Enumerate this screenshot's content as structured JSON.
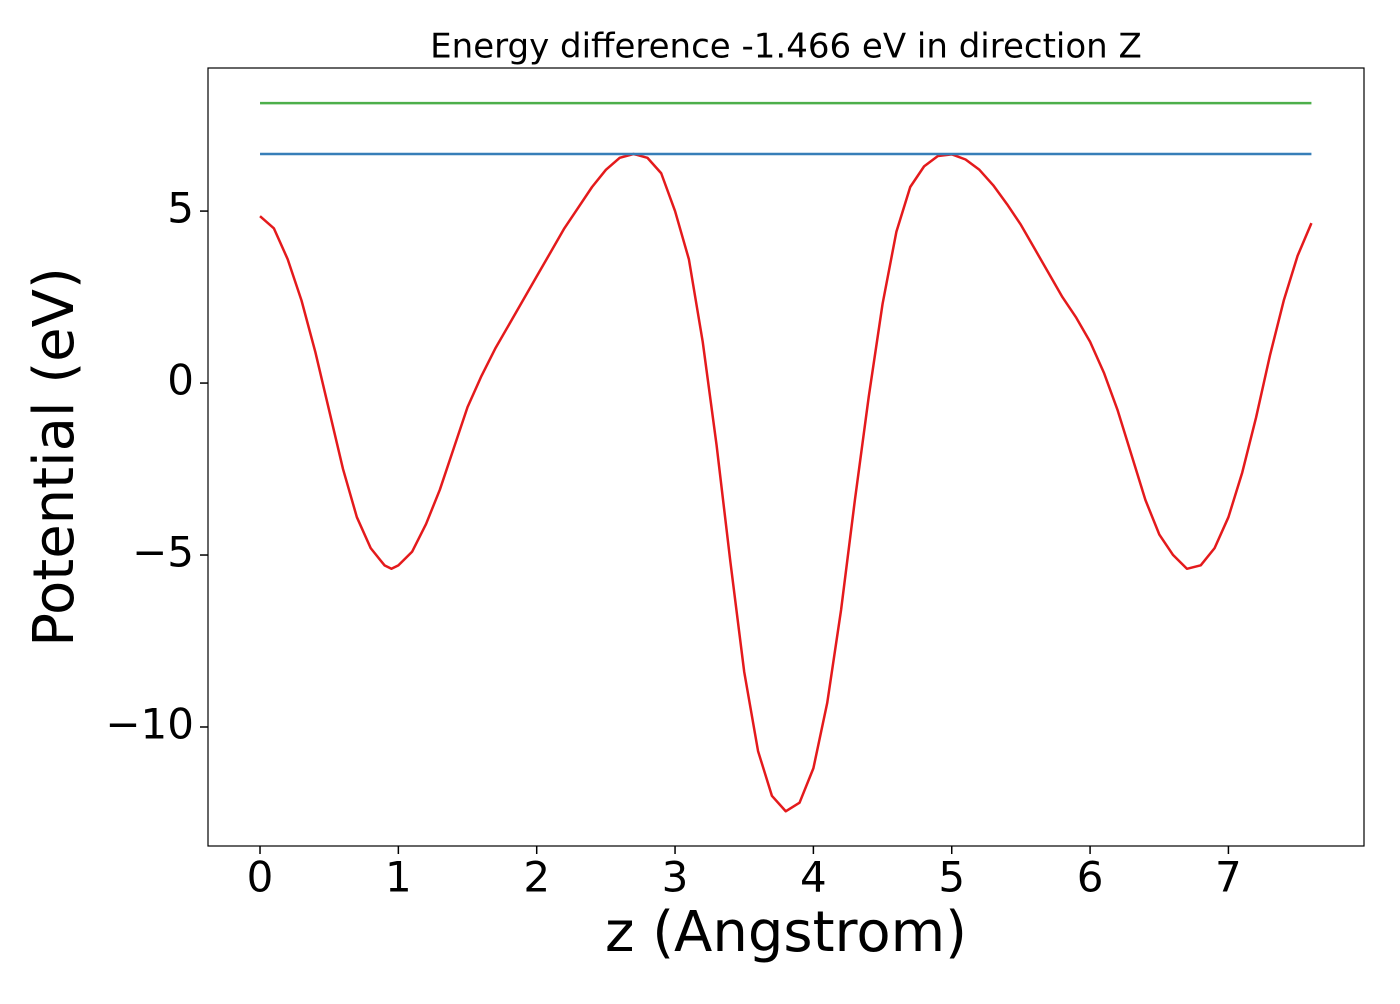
{
  "chart_data": {
    "type": "line",
    "title": "Energy difference -1.466 eV in direction Z",
    "x_label": "z (Angstrom)",
    "y_label": "Potential (eV)",
    "xlim": [
      -0.376,
      7.98
    ],
    "ylim": [
      -13.46,
      9.16
    ],
    "xticks": [
      0,
      1,
      2,
      3,
      4,
      5,
      6,
      7
    ],
    "yticks": [
      {
        "value": -10,
        "label": "−10"
      },
      {
        "value": -5,
        "label": "−5"
      },
      0,
      5
    ],
    "grid": false,
    "series": [
      {
        "color": "#e41a1c",
        "x": [
          0,
          0.1,
          0.2,
          0.3,
          0.4,
          0.5,
          0.6,
          0.7,
          0.8,
          0.9,
          0.95,
          1.0,
          1.1,
          1.2,
          1.3,
          1.4,
          1.5,
          1.6,
          1.7,
          1.8,
          1.9,
          2.0,
          2.1,
          2.2,
          2.3,
          2.4,
          2.5,
          2.6,
          2.7,
          2.8,
          2.9,
          3.0,
          3.1,
          3.2,
          3.3,
          3.4,
          3.5,
          3.6,
          3.7,
          3.8,
          3.9,
          4.0,
          4.1,
          4.2,
          4.3,
          4.4,
          4.5,
          4.6,
          4.7,
          4.8,
          4.9,
          5.0,
          5.1,
          5.2,
          5.3,
          5.4,
          5.5,
          5.6,
          5.7,
          5.8,
          5.9,
          6.0,
          6.1,
          6.2,
          6.3,
          6.4,
          6.5,
          6.6,
          6.7,
          6.8,
          6.9,
          7.0,
          7.1,
          7.2,
          7.3,
          7.4,
          7.5,
          7.6
        ],
        "values": [
          4.85,
          4.5,
          3.6,
          2.4,
          0.9,
          -0.8,
          -2.5,
          -3.9,
          -4.8,
          -5.3,
          -5.4,
          -5.3,
          -4.9,
          -4.1,
          -3.1,
          -1.9,
          -0.7,
          0.2,
          1.0,
          1.7,
          2.4,
          3.1,
          3.8,
          4.5,
          5.1,
          5.7,
          6.2,
          6.55,
          6.66,
          6.55,
          6.1,
          5.0,
          3.6,
          1.2,
          -1.8,
          -5.2,
          -8.4,
          -10.7,
          -12.0,
          -12.45,
          -12.2,
          -11.2,
          -9.3,
          -6.6,
          -3.4,
          -0.4,
          2.3,
          4.4,
          5.7,
          6.3,
          6.6,
          6.65,
          6.5,
          6.2,
          5.75,
          5.2,
          4.6,
          3.9,
          3.2,
          2.5,
          1.9,
          1.2,
          0.3,
          -0.8,
          -2.1,
          -3.4,
          -4.4,
          -5.0,
          -5.4,
          -5.3,
          -4.8,
          -3.9,
          -2.6,
          -1.0,
          0.8,
          2.4,
          3.7,
          4.65
        ]
      },
      {
        "color": "#377eb8",
        "x": [
          0,
          7.6
        ],
        "values": [
          6.66,
          6.66
        ]
      },
      {
        "color": "#4daf4a",
        "x": [
          0,
          7.6
        ],
        "values": [
          8.14,
          8.14
        ]
      }
    ]
  }
}
